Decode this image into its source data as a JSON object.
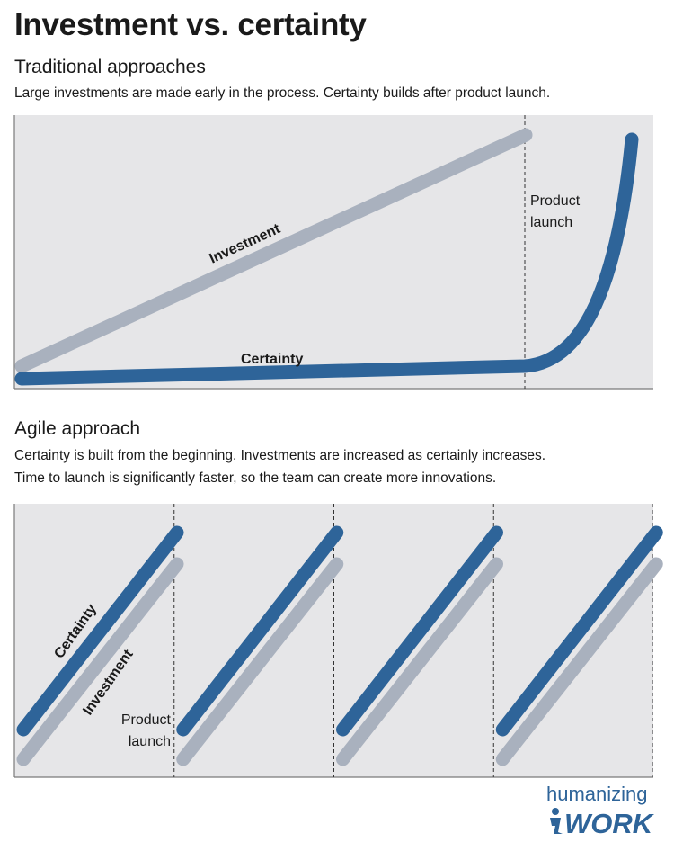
{
  "header": {
    "title": "Investment vs. certainty"
  },
  "traditional": {
    "heading": "Traditional approaches",
    "description": "Large investments are made early in the process. Certainty builds after product launch.",
    "investment_label": "Investment",
    "certainty_label": "Certainty",
    "launch_label_line1": "Product",
    "launch_label_line2": "launch"
  },
  "agile": {
    "heading": "Agile approach",
    "description_line1": "Certainty is built from the beginning. Investments are increased as certainly increases.",
    "description_line2": "Time to launch is significantly faster, so the team can create more innovations.",
    "certainty_label": "Certainty",
    "investment_label": "Investment",
    "launch_label_line1": "Product",
    "launch_label_line2": "launch",
    "cycles": 4
  },
  "logo": {
    "line1": "humanizing",
    "line2": "WORK"
  },
  "colors": {
    "panel": "#e6e6e8",
    "investment": "#a9b1be",
    "certainty": "#2e6499",
    "axis": "#7a7a7a",
    "logo_blue": "#2e6499"
  }
}
